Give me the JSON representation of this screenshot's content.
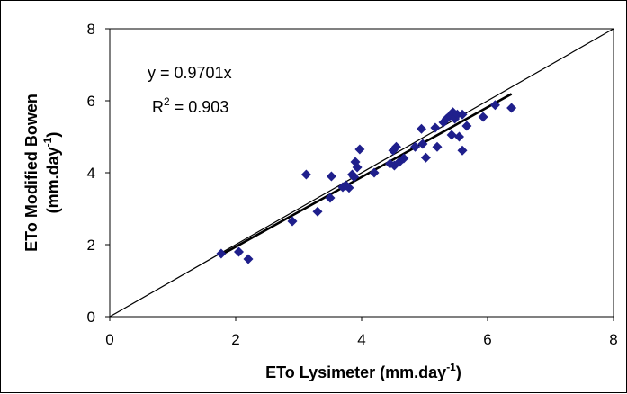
{
  "chart_data": {
    "type": "scatter",
    "xlabel": {
      "main": "ETo Lysimeter (mm.day",
      "sup": "-1",
      "tail": ")"
    },
    "ylabel": {
      "line1": "ETo Modified Bowen",
      "line2_main": "(mm.day",
      "line2_sup": "-1",
      "line2_tail": ")"
    },
    "xlim": [
      0,
      8
    ],
    "ylim": [
      0,
      8
    ],
    "xticks": [
      "0",
      "2",
      "4",
      "6",
      "8"
    ],
    "yticks": [
      "0",
      "2",
      "4",
      "6",
      "8"
    ],
    "grid": false,
    "legend": "none",
    "annotations": {
      "equation": "y = 0.9701x",
      "r2_main": "R",
      "r2_sup": "2",
      "r2_tail": " = 0.903"
    },
    "series": [
      {
        "marker": "diamond",
        "color": "#1F1F8C",
        "x": [
          1.77,
          2.05,
          2.2,
          2.9,
          3.12,
          3.3,
          3.5,
          3.52,
          3.7,
          3.75,
          3.8,
          3.85,
          3.88,
          3.9,
          3.93,
          3.97,
          4.2,
          4.45,
          4.5,
          4.52,
          4.55,
          4.6,
          4.67,
          4.85,
          4.95,
          4.97,
          5.02,
          5.17,
          5.2,
          5.3,
          5.35,
          5.4,
          5.43,
          5.45,
          5.48,
          5.52,
          5.55,
          5.6,
          5.6,
          5.67,
          5.93,
          6.12,
          6.38
        ],
        "y": [
          1.75,
          1.8,
          1.6,
          2.65,
          3.95,
          2.92,
          3.3,
          3.9,
          3.6,
          3.65,
          3.58,
          3.95,
          3.88,
          4.3,
          4.15,
          4.65,
          4.0,
          4.25,
          4.62,
          4.2,
          4.72,
          4.3,
          4.4,
          4.72,
          5.22,
          4.8,
          4.42,
          5.25,
          4.72,
          5.4,
          5.5,
          5.58,
          5.05,
          5.68,
          5.5,
          5.62,
          5.0,
          5.62,
          4.62,
          5.3,
          5.55,
          5.88,
          5.8
        ]
      }
    ],
    "lines": [
      {
        "kind": "one-to-one",
        "color": "#000000",
        "x": [
          0,
          8
        ],
        "y": [
          0,
          8
        ]
      },
      {
        "kind": "trendline",
        "color": "#000000",
        "slope": 0.9701,
        "x": [
          1.77,
          6.38
        ]
      }
    ]
  }
}
